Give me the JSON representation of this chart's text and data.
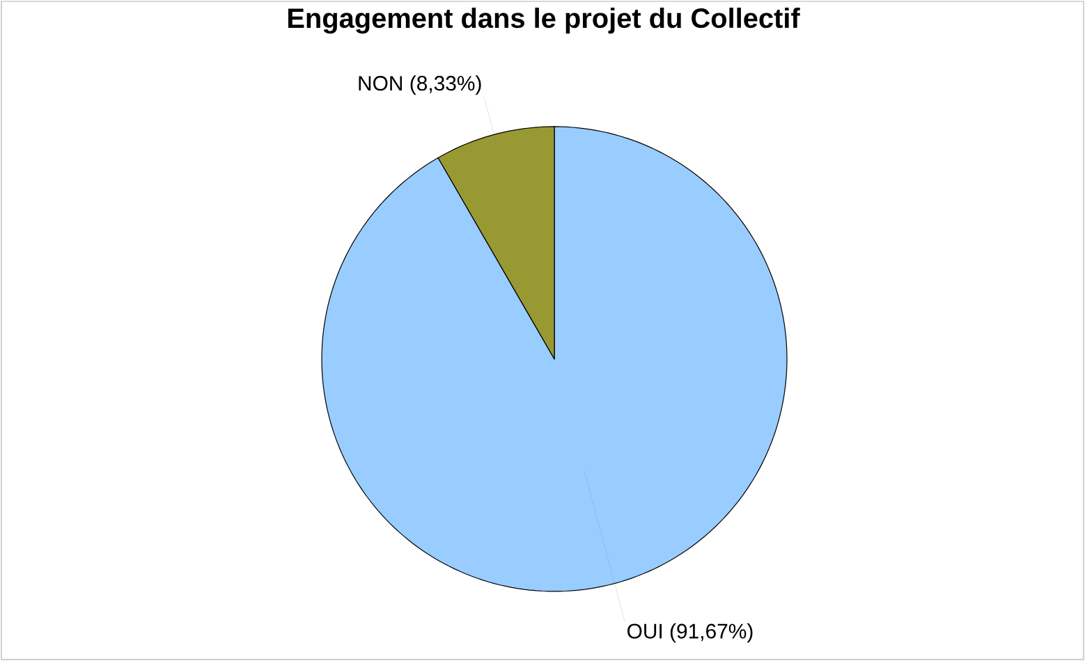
{
  "chart_data": {
    "type": "pie",
    "title": "Engagement dans le projet du Collectif",
    "categories": [
      "OUI",
      "NON"
    ],
    "values": [
      91.67,
      8.33
    ],
    "colors": [
      "#99ccff",
      "#999933"
    ],
    "value_labels": [
      "(91,67%)",
      "(8,33%)"
    ]
  }
}
